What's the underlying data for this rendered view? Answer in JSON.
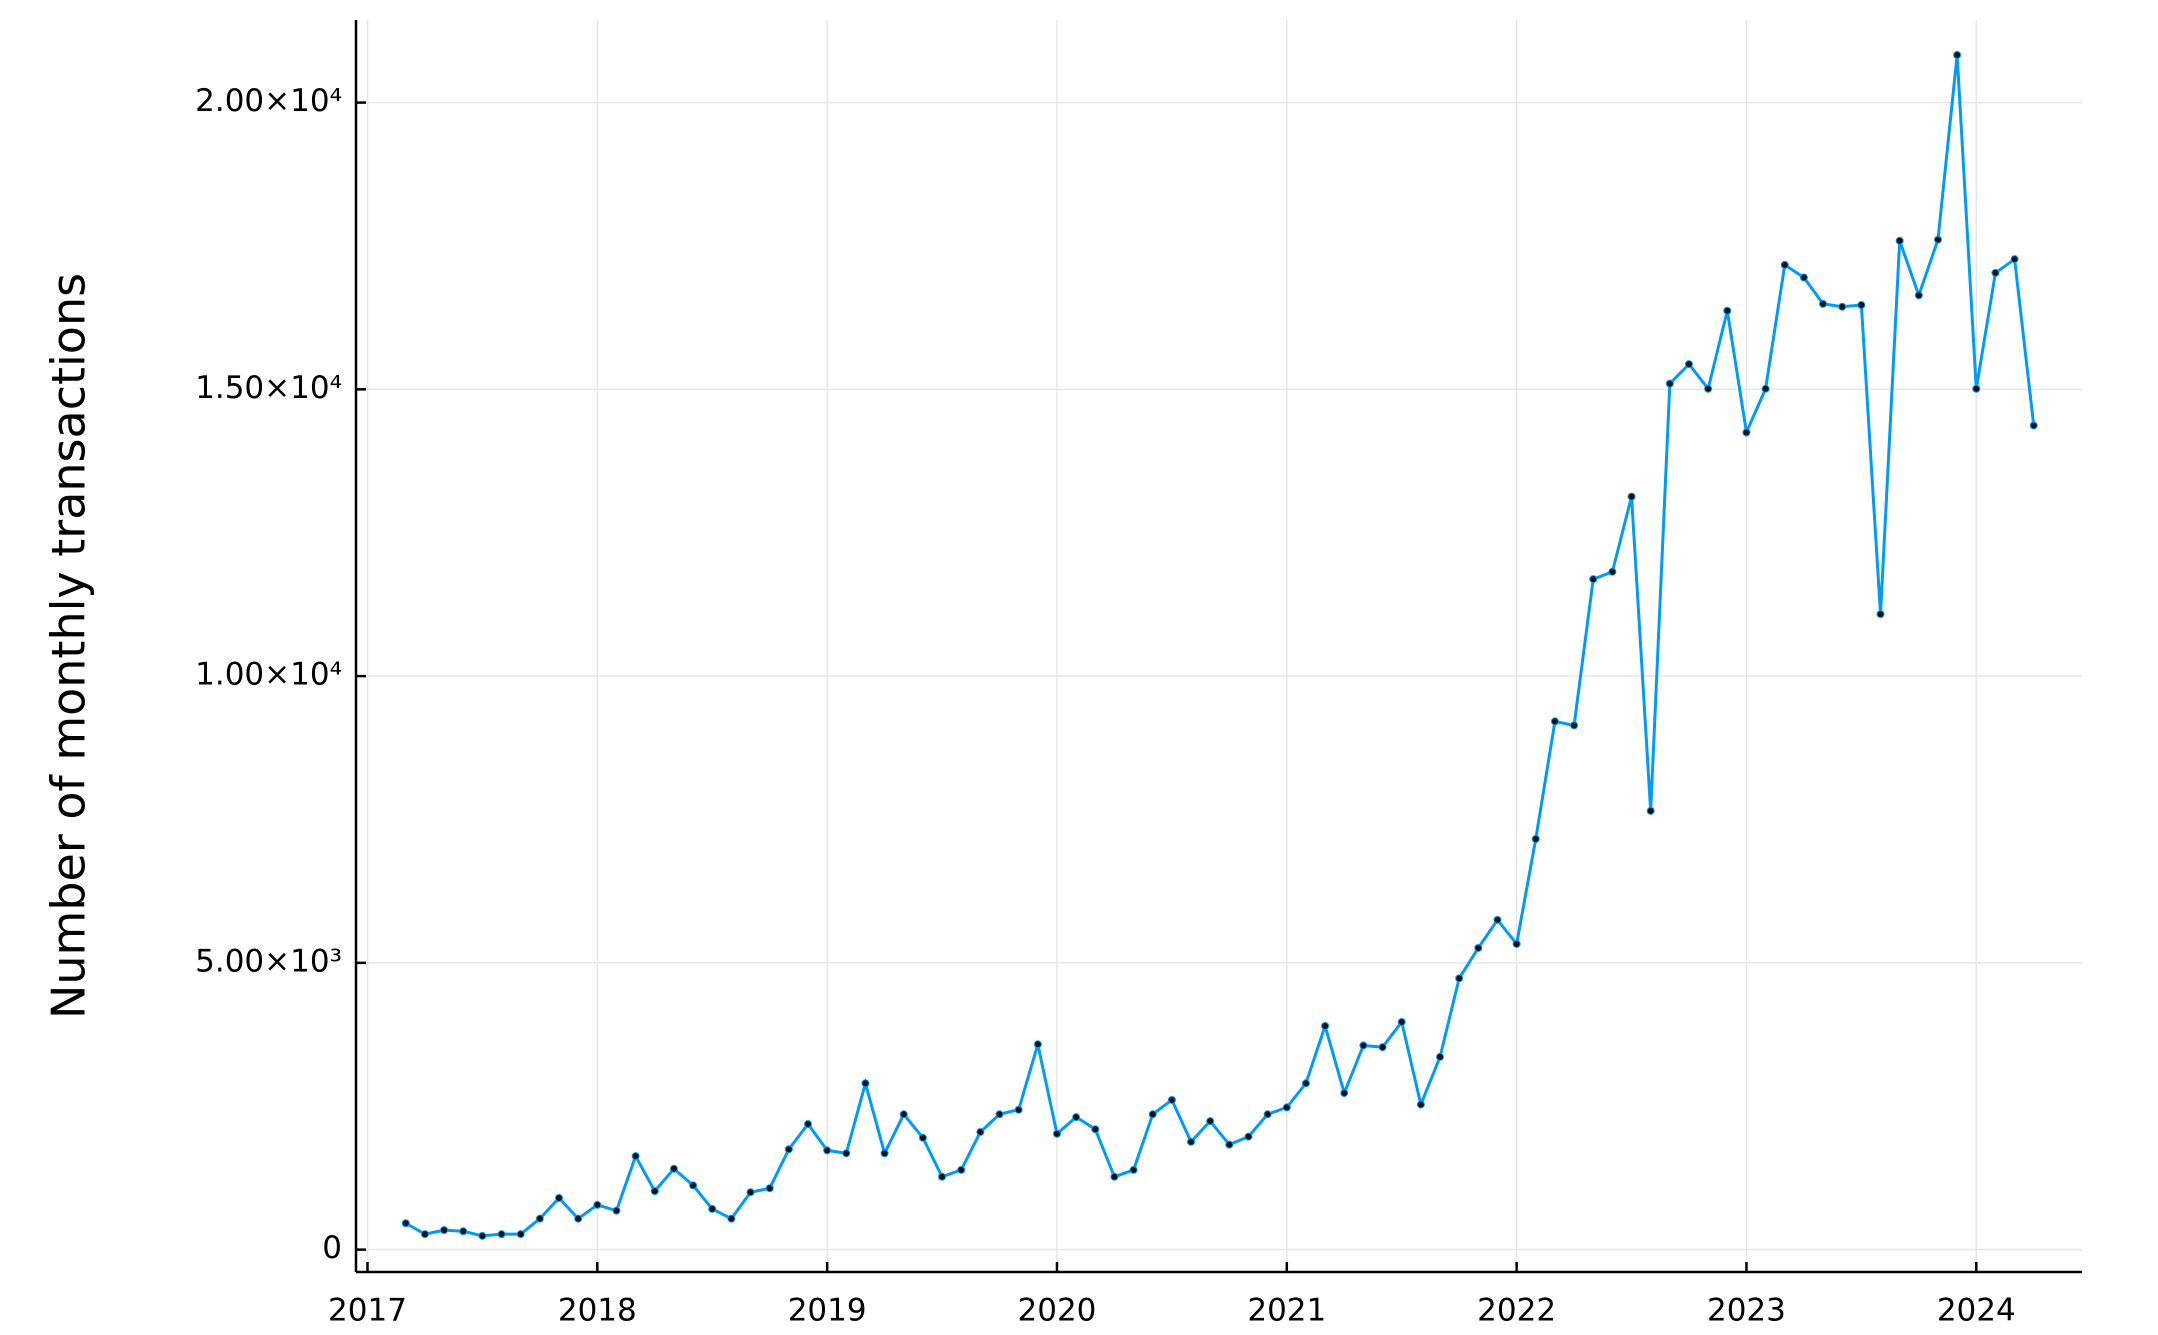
{
  "chart_data": {
    "type": "line",
    "y_label": "Number of monthly transactions",
    "x": [
      2017.1667,
      2017.25,
      2017.3333,
      2017.4167,
      2017.5,
      2017.5833,
      2017.6667,
      2017.75,
      2017.8333,
      2017.9167,
      2018,
      2018.0833,
      2018.1667,
      2018.25,
      2018.3333,
      2018.4167,
      2018.5,
      2018.5833,
      2018.6667,
      2018.75,
      2018.8333,
      2018.9167,
      2019,
      2019.0833,
      2019.1667,
      2019.25,
      2019.3333,
      2019.4167,
      2019.5,
      2019.5833,
      2019.6667,
      2019.75,
      2019.8333,
      2019.9167,
      2020,
      2020.0833,
      2020.1667,
      2020.25,
      2020.3333,
      2020.4167,
      2020.5,
      2020.5833,
      2020.6667,
      2020.75,
      2020.8333,
      2020.9167,
      2021,
      2021.0833,
      2021.1667,
      2021.25,
      2021.3333,
      2021.4167,
      2021.5,
      2021.5833,
      2021.6667,
      2021.75,
      2021.8333,
      2021.9167,
      2022,
      2022.0833,
      2022.1667,
      2022.25,
      2022.3333,
      2022.4167,
      2022.5,
      2022.5833,
      2022.6667,
      2022.75,
      2022.8333,
      2022.9167,
      2023,
      2023.0833,
      2023.1667,
      2023.25,
      2023.3333,
      2023.4167,
      2023.5,
      2023.5833,
      2023.6667,
      2023.75,
      2023.8333,
      2023.9167,
      2024,
      2024.0833,
      2024.1667,
      2024.25
    ],
    "values": [
      460,
      270,
      340,
      320,
      240,
      270,
      270,
      540,
      900,
      540,
      780,
      680,
      1630,
      1020,
      1410,
      1120,
      710,
      540,
      1000,
      1070,
      1750,
      2190,
      1730,
      1680,
      2900,
      1680,
      2360,
      1950,
      1270,
      1390,
      2050,
      2360,
      2440,
      3580,
      2020,
      2310,
      2100,
      1270,
      1390,
      2360,
      2610,
      1880,
      2240,
      1830,
      1970,
      2360,
      2480,
      2900,
      3900,
      2730,
      3560,
      3530,
      3970,
      2530,
      3360,
      4730,
      5260,
      5750,
      5330,
      7160,
      9210,
      9140,
      11690,
      11820,
      13130,
      7650,
      15100,
      15440,
      15010,
      16370,
      14250,
      15010,
      17170,
      16950,
      16490,
      16440,
      16470,
      11080,
      17590,
      16640,
      17610,
      20830,
      15010,
      17030,
      17270,
      14370
    ],
    "color": "#009af9",
    "marker_color": "#111111",
    "xlim": [
      2016.95,
      2024.46
    ],
    "ylim": [
      -390,
      21440
    ],
    "xticks": [
      2017,
      2018,
      2019,
      2020,
      2021,
      2022,
      2023,
      2024
    ],
    "yticks": [
      0,
      {
        "value": 5000,
        "label": "5.00×10³"
      },
      {
        "value": 10000,
        "label": "1.00×10⁴"
      },
      {
        "value": 15000,
        "label": "1.50×10⁴"
      },
      {
        "value": 20000,
        "label": "2.00×10⁴"
      }
    ],
    "grid": true
  }
}
